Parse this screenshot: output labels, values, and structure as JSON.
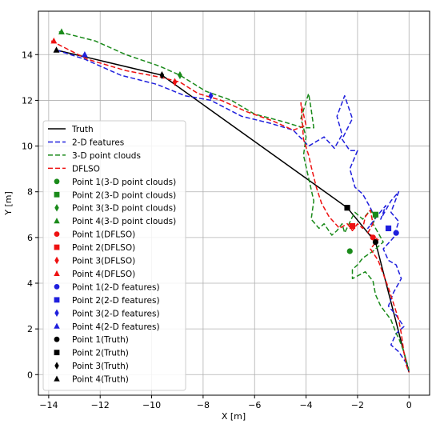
{
  "chart_data": {
    "type": "line",
    "title": "",
    "xlabel": "X [m]",
    "ylabel": "Y [m]",
    "xlim": [
      -14.4,
      0.8
    ],
    "ylim": [
      -0.9,
      15.9
    ],
    "xticks": [
      -14,
      -12,
      -10,
      -8,
      -6,
      -4,
      -2,
      0
    ],
    "yticks": [
      0,
      2,
      4,
      6,
      8,
      10,
      12,
      14
    ],
    "grid": true,
    "legend_position": "left",
    "colors": {
      "truth": "#000000",
      "features_2d": "#1f1fdd",
      "point_clouds_3d": "#1a8a1a",
      "dflso": "#ee1111"
    },
    "series": [
      {
        "name": "Truth",
        "key": "truth",
        "dash": "solid",
        "x": [
          -13.7,
          -9.6,
          -2.4,
          -1.3,
          0.0
        ],
        "y": [
          14.2,
          13.1,
          7.3,
          5.8,
          0.1
        ]
      },
      {
        "name": "2-D features",
        "key": "features_2d",
        "dash": "dashed",
        "x": [
          -13.7,
          -12.6,
          -11.2,
          -9.8,
          -8.7,
          -7.7,
          -6.5,
          -5.4,
          -4.5,
          -3.9,
          -3.3,
          -2.9,
          -2.6,
          -2.8,
          -2.5,
          -2.2,
          -2.6,
          -2.3,
          -2.0,
          -2.3,
          -2.1,
          -1.8,
          -1.5,
          -1.3,
          -1.6,
          -1.2,
          -0.9,
          -1.1,
          -0.7,
          -0.4,
          -0.7,
          -0.4,
          -0.6,
          -1.0,
          -0.8,
          -0.5,
          -0.3,
          -0.6,
          -0.8,
          -0.5,
          -0.2,
          -0.5,
          -0.7,
          -0.4,
          -0.1,
          0.0
        ],
        "y": [
          14.2,
          13.8,
          13.1,
          12.7,
          12.2,
          12.0,
          11.3,
          11.0,
          10.7,
          10.0,
          10.4,
          9.9,
          10.5,
          11.3,
          12.2,
          11.2,
          10.3,
          9.8,
          9.8,
          9.0,
          8.2,
          7.9,
          7.3,
          6.8,
          6.4,
          7.0,
          7.4,
          6.8,
          7.6,
          8.0,
          7.1,
          6.7,
          6.0,
          5.5,
          5.0,
          4.8,
          4.2,
          3.6,
          3.0,
          2.6,
          2.1,
          1.8,
          1.3,
          1.0,
          0.5,
          0.1
        ]
      },
      {
        "name": "3-D point clouds",
        "key": "point_clouds_3d",
        "dash": "dashed",
        "x": [
          -13.6,
          -12.2,
          -11.0,
          -9.7,
          -8.9,
          -7.9,
          -6.9,
          -6.0,
          -5.0,
          -4.1,
          -3.7,
          -3.8,
          -3.9,
          -4.2,
          -4.0,
          -4.1,
          -3.9,
          -3.7,
          -3.8,
          -3.5,
          -3.3,
          -3.0,
          -2.8,
          -2.6,
          -2.5,
          -2.2,
          -2.1,
          -1.8,
          -1.5,
          -1.3,
          -1.4,
          -1.2,
          -1.0,
          -1.4,
          -1.8,
          -2.0,
          -2.2,
          -2.2,
          -1.7,
          -1.4,
          -1.3,
          -1.1,
          -0.9,
          -0.7,
          -0.6,
          -0.5,
          -0.4,
          -0.3,
          -0.2,
          -0.1,
          0.0
        ],
        "y": [
          15.0,
          14.6,
          14.0,
          13.5,
          13.1,
          12.4,
          12.0,
          11.4,
          11.1,
          10.8,
          10.8,
          11.6,
          12.3,
          11.2,
          10.4,
          9.6,
          8.6,
          7.6,
          6.8,
          6.4,
          6.6,
          6.1,
          6.3,
          6.6,
          6.2,
          6.9,
          7.1,
          6.8,
          7.2,
          6.9,
          6.6,
          6.2,
          5.8,
          5.4,
          5.1,
          4.8,
          4.6,
          4.2,
          4.5,
          4.1,
          3.5,
          3.0,
          2.7,
          2.4,
          2.1,
          1.8,
          1.6,
          1.3,
          1.0,
          0.6,
          0.2
        ]
      },
      {
        "name": "DFLSO",
        "key": "dflso",
        "dash": "dashed",
        "x": [
          -13.9,
          -12.5,
          -11.0,
          -9.6,
          -8.9,
          -8.2,
          -7.3,
          -6.3,
          -5.3,
          -4.5,
          -4.0,
          -4.2,
          -4.1,
          -3.9,
          -3.8,
          -3.6,
          -3.4,
          -3.1,
          -2.7,
          -2.4,
          -2.2,
          -2.0,
          -1.8,
          -1.7,
          -1.5,
          -1.4,
          -1.6,
          -1.2,
          -1.5,
          -1.2,
          -1.0,
          -0.8,
          -0.6,
          -0.4,
          -0.3,
          -0.2,
          -0.1,
          0.0
        ],
        "y": [
          14.6,
          13.8,
          13.3,
          13.0,
          12.8,
          12.3,
          12.0,
          11.5,
          11.1,
          10.7,
          10.9,
          11.9,
          10.3,
          9.6,
          9.1,
          8.2,
          7.5,
          6.9,
          6.4,
          6.6,
          6.3,
          6.6,
          6.4,
          6.9,
          7.2,
          6.6,
          6.2,
          5.9,
          5.5,
          5.0,
          4.4,
          3.8,
          3.1,
          2.4,
          1.8,
          1.0,
          0.4,
          0.1
        ]
      }
    ],
    "markers": [
      {
        "name": "Point 1(3-D point clouds)",
        "key": "point_clouds_3d",
        "shape": "circle",
        "x": -2.3,
        "y": 5.4
      },
      {
        "name": "Point 2(3-D point clouds)",
        "key": "point_clouds_3d",
        "shape": "square",
        "x": -1.3,
        "y": 7.0
      },
      {
        "name": "Point 3(3-D point clouds)",
        "key": "point_clouds_3d",
        "shape": "diamond",
        "x": -8.9,
        "y": 13.1
      },
      {
        "name": "Point 4(3-D point clouds)",
        "key": "point_clouds_3d",
        "shape": "triangle",
        "x": -13.5,
        "y": 15.0
      },
      {
        "name": "Point 1(DFLSO)",
        "key": "dflso",
        "shape": "circle",
        "x": -1.4,
        "y": 6.0
      },
      {
        "name": "Point 2(DFLSO)",
        "key": "dflso",
        "shape": "square",
        "x": -2.2,
        "y": 6.5
      },
      {
        "name": "Point 3(DFLSO)",
        "key": "dflso",
        "shape": "diamond",
        "x": -9.1,
        "y": 12.8
      },
      {
        "name": "Point 4(DFLSO)",
        "key": "dflso",
        "shape": "triangle",
        "x": -13.8,
        "y": 14.6
      },
      {
        "name": "Point 1(2-D features)",
        "key": "features_2d",
        "shape": "circle",
        "x": -0.5,
        "y": 6.2
      },
      {
        "name": "Point 2(2-D features)",
        "key": "features_2d",
        "shape": "square",
        "x": -0.8,
        "y": 6.4
      },
      {
        "name": "Point 3(2-D features)",
        "key": "features_2d",
        "shape": "diamond",
        "x": -7.7,
        "y": 12.2
      },
      {
        "name": "Point 4(2-D features)",
        "key": "features_2d",
        "shape": "triangle",
        "x": -12.6,
        "y": 14.0
      },
      {
        "name": "Point 1(Truth)",
        "key": "truth",
        "shape": "circle",
        "x": -1.3,
        "y": 5.8
      },
      {
        "name": "Point 2(Truth)",
        "key": "truth",
        "shape": "square",
        "x": -2.4,
        "y": 7.3
      },
      {
        "name": "Point 3(Truth)",
        "key": "truth",
        "shape": "diamond",
        "x": -9.6,
        "y": 13.1
      },
      {
        "name": "Point 4(Truth)",
        "key": "truth",
        "shape": "triangle",
        "x": -13.7,
        "y": 14.2
      }
    ]
  }
}
